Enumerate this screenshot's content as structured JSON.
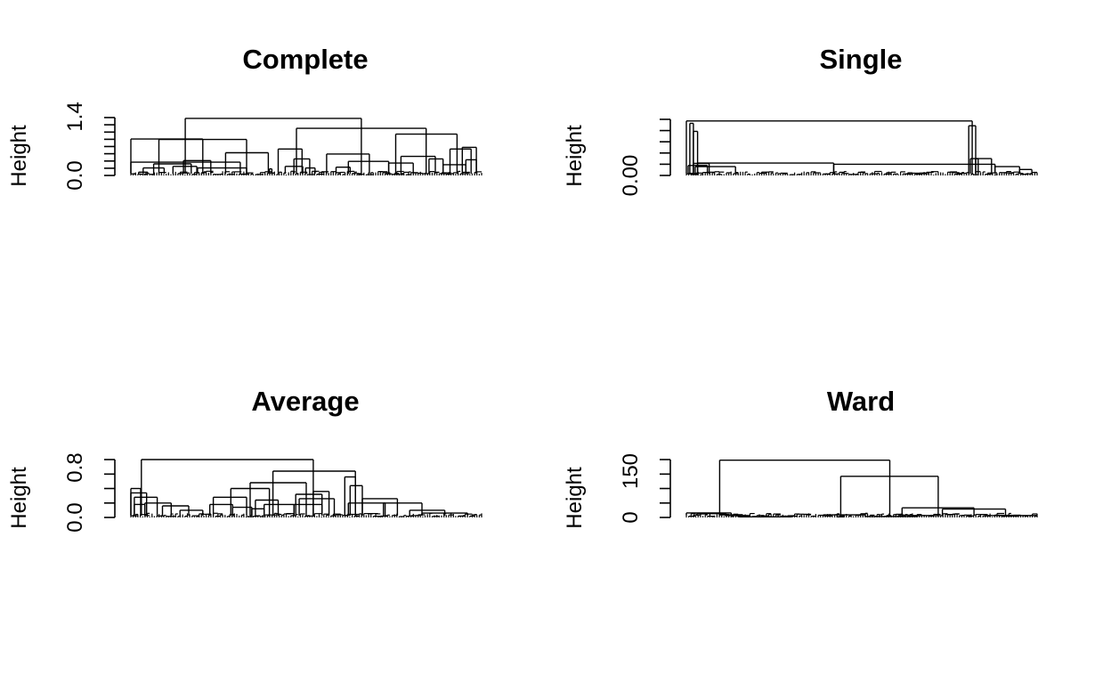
{
  "chart_data": [
    {
      "type": "dendrogram",
      "title": "Complete",
      "ylabel": "Height",
      "ylim": [
        0,
        1.4
      ],
      "tick_labels": [
        "0.0",
        "1.4"
      ],
      "minor_tick_count": 8,
      "merges": [
        {
          "x1": 0.0,
          "x2": 0.312,
          "h": 0.32
        },
        {
          "x1": 0.022,
          "x2": 0.048,
          "h": 0.08
        },
        {
          "x1": 0.035,
          "x2": 0.095,
          "h": 0.18
        },
        {
          "x1": 0.065,
          "x2": 0.172,
          "h": 0.28
        },
        {
          "x1": 0.12,
          "x2": 0.188,
          "h": 0.22
        },
        {
          "x1": 0.15,
          "x2": 0.228,
          "h": 0.36
        },
        {
          "x1": 0.19,
          "x2": 0.33,
          "h": 0.18
        },
        {
          "x1": 0.27,
          "x2": 0.392,
          "h": 0.55
        },
        {
          "x1": 0.08,
          "x2": 0.33,
          "h": 0.87
        },
        {
          "x1": 0.0,
          "x2": 0.205,
          "h": 0.88
        },
        {
          "x1": 0.395,
          "x2": 0.402,
          "h": 0.16
        },
        {
          "x1": 0.44,
          "x2": 0.49,
          "h": 0.22
        },
        {
          "x1": 0.498,
          "x2": 0.525,
          "h": 0.18
        },
        {
          "x1": 0.465,
          "x2": 0.51,
          "h": 0.4
        },
        {
          "x1": 0.42,
          "x2": 0.488,
          "h": 0.64
        },
        {
          "x1": 0.585,
          "x2": 0.625,
          "h": 0.2
        },
        {
          "x1": 0.62,
          "x2": 0.735,
          "h": 0.34
        },
        {
          "x1": 0.558,
          "x2": 0.68,
          "h": 0.52
        },
        {
          "x1": 0.735,
          "x2": 0.805,
          "h": 0.3
        },
        {
          "x1": 0.77,
          "x2": 0.868,
          "h": 0.46
        },
        {
          "x1": 0.85,
          "x2": 0.89,
          "h": 0.4
        },
        {
          "x1": 0.89,
          "x2": 0.955,
          "h": 0.26
        },
        {
          "x1": 0.955,
          "x2": 0.985,
          "h": 0.38
        },
        {
          "x1": 0.91,
          "x2": 0.97,
          "h": 0.64
        },
        {
          "x1": 0.945,
          "x2": 0.985,
          "h": 0.68
        },
        {
          "x1": 0.755,
          "x2": 0.93,
          "h": 1.0
        },
        {
          "x1": 0.472,
          "x2": 0.842,
          "h": 1.14
        },
        {
          "x1": 0.155,
          "x2": 0.657,
          "h": 1.38
        }
      ]
    },
    {
      "type": "dendrogram",
      "title": "Single",
      "ylabel": "Height",
      "ylim": [
        0,
        0.14
      ],
      "tick_labels": [
        "0.00"
      ],
      "minor_tick_count": 5,
      "merges": [
        {
          "x1": 0.005,
          "x2": 0.06,
          "h": 0.025
        },
        {
          "x1": 0.02,
          "x2": 0.065,
          "h": 0.03
        },
        {
          "x1": 0.032,
          "x2": 0.42,
          "h": 0.031
        },
        {
          "x1": 0.42,
          "x2": 0.88,
          "h": 0.028
        },
        {
          "x1": 0.88,
          "x2": 0.95,
          "h": 0.022
        },
        {
          "x1": 0.95,
          "x2": 0.985,
          "h": 0.015
        },
        {
          "x1": 0.025,
          "x2": 0.14,
          "h": 0.022
        },
        {
          "x1": 0.02,
          "x2": 0.032,
          "h": 0.11
        },
        {
          "x1": 0.01,
          "x2": 0.02,
          "h": 0.13
        },
        {
          "x1": 0.81,
          "x2": 0.832,
          "h": 0.042
        },
        {
          "x1": 0.825,
          "x2": 0.87,
          "h": 0.042
        },
        {
          "x1": 0.805,
          "x2": 0.825,
          "h": 0.124
        },
        {
          "x1": 0.0,
          "x2": 0.815,
          "h": 0.136
        }
      ]
    },
    {
      "type": "dendrogram",
      "title": "Average",
      "ylabel": "Height",
      "ylim": [
        0,
        0.8
      ],
      "tick_labels": [
        "0.0",
        "0.8"
      ],
      "minor_tick_count": 4,
      "merges": [
        {
          "x1": 0.0,
          "x2": 0.045,
          "h": 0.34
        },
        {
          "x1": 0.01,
          "x2": 0.075,
          "h": 0.28
        },
        {
          "x1": 0.04,
          "x2": 0.115,
          "h": 0.2
        },
        {
          "x1": 0.09,
          "x2": 0.165,
          "h": 0.16
        },
        {
          "x1": 0.14,
          "x2": 0.205,
          "h": 0.1
        },
        {
          "x1": 0.01,
          "x2": 0.04,
          "h": 0.18
        },
        {
          "x1": 0.0,
          "x2": 0.028,
          "h": 0.4
        },
        {
          "x1": 0.225,
          "x2": 0.29,
          "h": 0.18
        },
        {
          "x1": 0.235,
          "x2": 0.33,
          "h": 0.28
        },
        {
          "x1": 0.29,
          "x2": 0.345,
          "h": 0.14
        },
        {
          "x1": 0.345,
          "x2": 0.38,
          "h": 0.12
        },
        {
          "x1": 0.38,
          "x2": 0.465,
          "h": 0.18
        },
        {
          "x1": 0.355,
          "x2": 0.42,
          "h": 0.24
        },
        {
          "x1": 0.285,
          "x2": 0.395,
          "h": 0.4
        },
        {
          "x1": 0.465,
          "x2": 0.545,
          "h": 0.18
        },
        {
          "x1": 0.48,
          "x2": 0.58,
          "h": 0.26
        },
        {
          "x1": 0.52,
          "x2": 0.565,
          "h": 0.36
        },
        {
          "x1": 0.47,
          "x2": 0.545,
          "h": 0.32
        },
        {
          "x1": 0.34,
          "x2": 0.5,
          "h": 0.48
        },
        {
          "x1": 0.62,
          "x2": 0.725,
          "h": 0.2
        },
        {
          "x1": 0.61,
          "x2": 0.64,
          "h": 0.56
        },
        {
          "x1": 0.625,
          "x2": 0.66,
          "h": 0.44
        },
        {
          "x1": 0.66,
          "x2": 0.76,
          "h": 0.26
        },
        {
          "x1": 0.72,
          "x2": 0.83,
          "h": 0.2
        },
        {
          "x1": 0.795,
          "x2": 0.895,
          "h": 0.1
        },
        {
          "x1": 0.83,
          "x2": 0.96,
          "h": 0.06
        },
        {
          "x1": 0.405,
          "x2": 0.64,
          "h": 0.64
        },
        {
          "x1": 0.03,
          "x2": 0.52,
          "h": 0.8
        }
      ]
    },
    {
      "type": "dendrogram",
      "title": "Ward",
      "ylabel": "Height",
      "ylim": [
        0,
        180
      ],
      "tick_labels": [
        "0",
        "150"
      ],
      "minor_tick_count": 4,
      "merges": [
        {
          "x1": 0.03,
          "x2": 0.095,
          "h": 12
        },
        {
          "x1": 0.11,
          "x2": 0.18,
          "h": 6
        },
        {
          "x1": 0.15,
          "x2": 0.3,
          "h": 2
        },
        {
          "x1": 0.095,
          "x2": 0.16,
          "h": 8
        },
        {
          "x1": 0.0,
          "x2": 0.128,
          "h": 14
        },
        {
          "x1": 0.39,
          "x2": 0.51,
          "h": 8
        },
        {
          "x1": 0.43,
          "x2": 0.45,
          "h": 2
        },
        {
          "x1": 0.51,
          "x2": 0.66,
          "h": 3
        },
        {
          "x1": 0.64,
          "x2": 0.72,
          "h": 6
        },
        {
          "x1": 0.73,
          "x2": 0.91,
          "h": 26
        },
        {
          "x1": 0.85,
          "x2": 1.0,
          "h": 6
        },
        {
          "x1": 0.615,
          "x2": 0.82,
          "h": 30
        },
        {
          "x1": 0.44,
          "x2": 0.718,
          "h": 128
        },
        {
          "x1": 0.095,
          "x2": 0.58,
          "h": 178
        }
      ]
    }
  ]
}
